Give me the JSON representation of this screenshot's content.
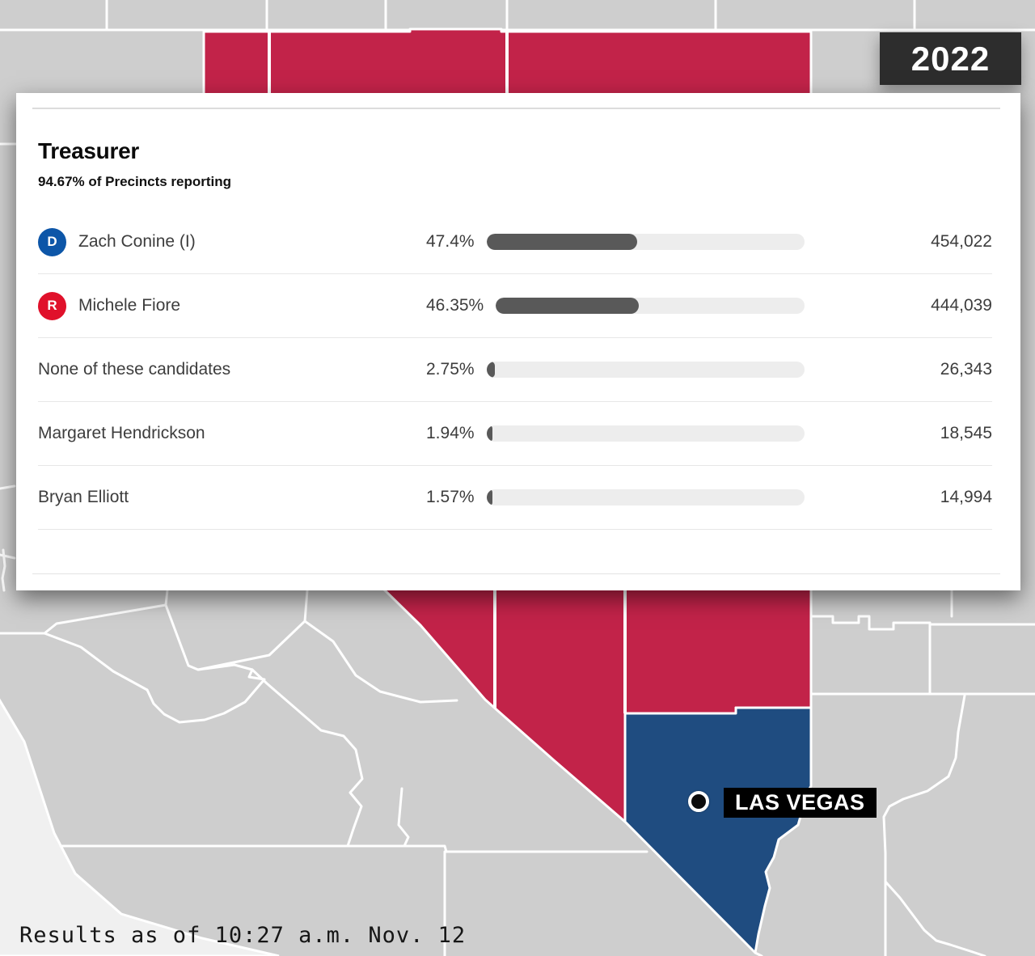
{
  "year_badge": {
    "label": "2022"
  },
  "race": {
    "title": "Treasurer",
    "reporting": "94.67% of Precincts reporting",
    "candidates": [
      {
        "party": "D",
        "name": "Zach Conine (I)",
        "percent_label": "47.4%",
        "percent": 47.4,
        "votes": "454,022"
      },
      {
        "party": "R",
        "name": "Michele Fiore",
        "percent_label": "46.35%",
        "percent": 46.35,
        "votes": "444,039"
      },
      {
        "party": "",
        "name": "None of these candidates",
        "percent_label": "2.75%",
        "percent": 2.75,
        "votes": "26,343"
      },
      {
        "party": "",
        "name": "Margaret Hendrickson",
        "percent_label": "1.94%",
        "percent": 1.94,
        "votes": "18,545"
      },
      {
        "party": "",
        "name": "Bryan Elliott",
        "percent_label": "1.57%",
        "percent": 1.57,
        "votes": "14,994"
      }
    ]
  },
  "map": {
    "city_label": "LAS VEGAS"
  },
  "status_line": "Results as of 10:27 a.m. Nov. 12",
  "colors": {
    "republican_county": "#c22349",
    "democrat_county": "#1f4c80",
    "map_base": "#cecece",
    "county_border": "#ffffff",
    "dem_badge": "#0d56a8",
    "rep_badge": "#e0112b",
    "bar_fill": "#595959",
    "bar_track": "#ededed",
    "year_badge_bg": "#2d2d2d"
  }
}
